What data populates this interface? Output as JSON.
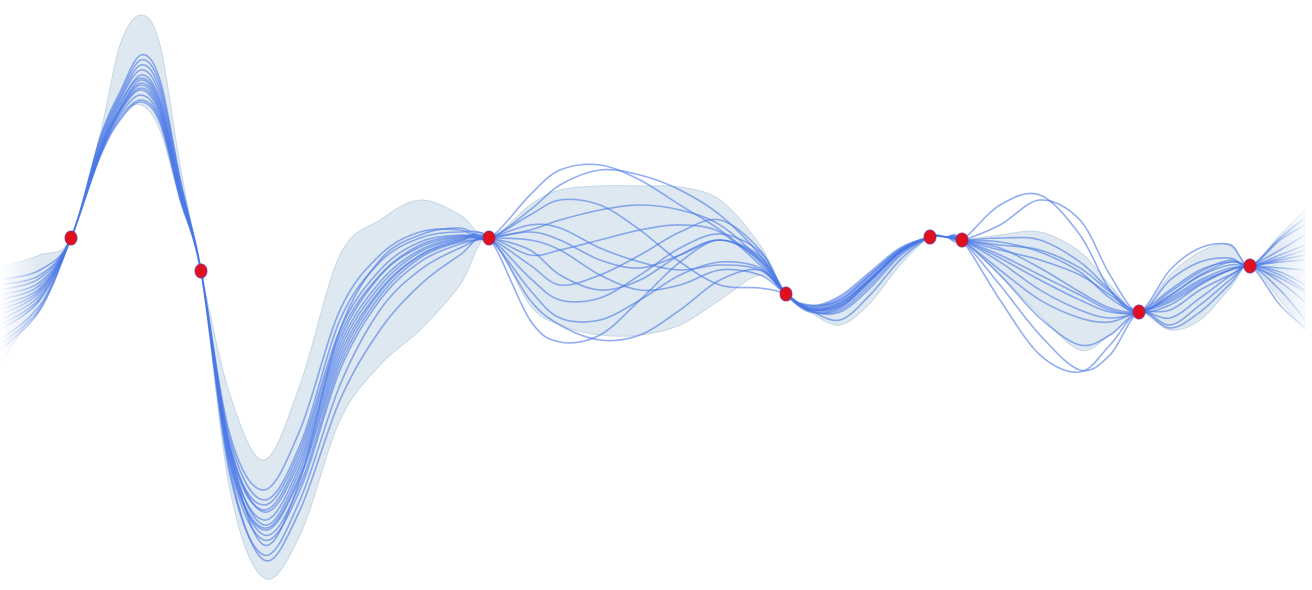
{
  "chart_data": {
    "type": "line",
    "title": "",
    "xlabel": "",
    "ylabel": "",
    "grid": false,
    "legend": "none",
    "xlim": [
      0,
      1312
    ],
    "ylim": [
      -590,
      0
    ],
    "colors": {
      "sample": "#4a78e6",
      "band": "#d8e4ef",
      "observation": "#e0101c"
    },
    "observations": [
      {
        "x": 71,
        "y": -238
      },
      {
        "x": 201,
        "y": -271
      },
      {
        "x": 489,
        "y": -238
      },
      {
        "x": 786,
        "y": -294
      },
      {
        "x": 930,
        "y": -237
      },
      {
        "x": 962,
        "y": -240
      },
      {
        "x": 1139,
        "y": -312
      },
      {
        "x": 1250,
        "y": -266
      }
    ],
    "band": {
      "x": [
        0,
        40,
        71,
        100,
        120,
        141,
        160,
        180,
        201,
        230,
        264,
        300,
        340,
        380,
        420,
        460,
        489,
        530,
        560,
        600,
        640,
        680,
        720,
        760,
        786,
        810,
        840,
        870,
        900,
        930,
        946,
        962,
        1000,
        1040,
        1080,
        1110,
        1139,
        1170,
        1200,
        1230,
        1250,
        1280,
        1305
      ],
      "upper": [
        -268,
        -255,
        -238,
        -135,
        -45,
        -15,
        -45,
        -165,
        -271,
        -395,
        -460,
        -385,
        -255,
        -220,
        -200,
        -215,
        -238,
        -205,
        -190,
        -186,
        -186,
        -187,
        -200,
        -245,
        -294,
        -305,
        -302,
        -280,
        -250,
        -237,
        -237,
        -240,
        -235,
        -232,
        -252,
        -285,
        -312,
        -275,
        -252,
        -244,
        -266,
        -235,
        -210
      ],
      "lower": [
        -365,
        -300,
        -238,
        -155,
        -115,
        -105,
        -130,
        -200,
        -271,
        -490,
        -578,
        -535,
        -420,
        -365,
        -330,
        -285,
        -238,
        -305,
        -325,
        -335,
        -335,
        -325,
        -300,
        -275,
        -294,
        -312,
        -325,
        -303,
        -265,
        -237,
        -237,
        -240,
        -275,
        -315,
        -350,
        -335,
        -312,
        -330,
        -320,
        -288,
        -266,
        -300,
        -330
      ]
    },
    "series": [
      {
        "values": [
          -285,
          -275,
          -238,
          -140,
          -95,
          -60,
          -85,
          -180,
          -271,
          -450,
          -545,
          -480,
          -330,
          -260,
          -235,
          -228,
          -238,
          -210,
          -185,
          -170,
          -175,
          -190,
          -215,
          -255,
          -294,
          -305,
          -300,
          -275,
          -250,
          -237,
          -237,
          -240,
          -225,
          -200,
          -220,
          -275,
          -312,
          -280,
          -262,
          -258,
          -266,
          -238,
          -218
        ]
      },
      {
        "values": [
          -295,
          -282,
          -238,
          -145,
          -100,
          -70,
          -95,
          -185,
          -271,
          -470,
          -560,
          -510,
          -400,
          -330,
          -285,
          -255,
          -238,
          -300,
          -325,
          -340,
          -335,
          -310,
          -280,
          -270,
          -294,
          -310,
          -320,
          -295,
          -260,
          -237,
          -237,
          -240,
          -285,
          -335,
          -370,
          -355,
          -312,
          -325,
          -305,
          -280,
          -266,
          -290,
          -320
        ]
      },
      {
        "values": [
          -300,
          -285,
          -238,
          -148,
          -105,
          -75,
          -100,
          -188,
          -271,
          -475,
          -555,
          -500,
          -385,
          -310,
          -270,
          -248,
          -238,
          -255,
          -250,
          -240,
          -230,
          -225,
          -232,
          -265,
          -294,
          -312,
          -308,
          -282,
          -252,
          -237,
          -237,
          -240,
          -250,
          -260,
          -275,
          -295,
          -312,
          -305,
          -285,
          -270,
          -266,
          -272,
          -285
        ]
      },
      {
        "values": [
          -310,
          -290,
          -238,
          -150,
          -108,
          -80,
          -105,
          -190,
          -271,
          -465,
          -540,
          -490,
          -370,
          -300,
          -262,
          -244,
          -238,
          -230,
          -220,
          -210,
          -205,
          -210,
          -225,
          -260,
          -294,
          -310,
          -302,
          -278,
          -252,
          -237,
          -237,
          -240,
          -245,
          -250,
          -268,
          -292,
          -312,
          -295,
          -275,
          -262,
          -266,
          -260,
          -255
        ]
      },
      {
        "values": [
          -320,
          -295,
          -238,
          -152,
          -110,
          -85,
          -110,
          -192,
          -271,
          -460,
          -528,
          -475,
          -355,
          -290,
          -255,
          -240,
          -238,
          -240,
          -250,
          -275,
          -290,
          -285,
          -270,
          -275,
          -294,
          -309,
          -306,
          -280,
          -252,
          -237,
          -237,
          -240,
          -262,
          -290,
          -310,
          -318,
          -312,
          -300,
          -282,
          -270,
          -266,
          -268,
          -270
        ]
      },
      {
        "values": [
          -330,
          -300,
          -238,
          -153,
          -112,
          -90,
          -115,
          -195,
          -271,
          -455,
          -520,
          -465,
          -345,
          -282,
          -250,
          -238,
          -238,
          -250,
          -275,
          -290,
          -280,
          -255,
          -240,
          -258,
          -294,
          -311,
          -310,
          -285,
          -254,
          -237,
          -237,
          -240,
          -270,
          -300,
          -318,
          -322,
          -312,
          -310,
          -290,
          -275,
          -266,
          -275,
          -290
        ]
      },
      {
        "values": [
          -340,
          -305,
          -238,
          -155,
          -115,
          -95,
          -118,
          -196,
          -271,
          -450,
          -510,
          -455,
          -335,
          -275,
          -245,
          -236,
          -238,
          -265,
          -285,
          -275,
          -255,
          -232,
          -220,
          -250,
          -294,
          -308,
          -300,
          -276,
          -250,
          -237,
          -237,
          -240,
          -258,
          -280,
          -300,
          -312,
          -312,
          -298,
          -280,
          -268,
          -266,
          -250,
          -235
        ]
      },
      {
        "values": [
          -350,
          -310,
          -238,
          -156,
          -118,
          -100,
          -120,
          -198,
          -271,
          -448,
          -505,
          -450,
          -330,
          -270,
          -242,
          -235,
          -238,
          -215,
          -200,
          -205,
          -230,
          -262,
          -285,
          -288,
          -294,
          -310,
          -304,
          -279,
          -251,
          -237,
          -237,
          -240,
          -238,
          -240,
          -262,
          -290,
          -312,
          -292,
          -272,
          -260,
          -266,
          -255,
          -245
        ]
      },
      {
        "values": [
          -290,
          -278,
          -238,
          -142,
          -98,
          -65,
          -90,
          -182,
          -271,
          -440,
          -500,
          -445,
          -320,
          -262,
          -238,
          -232,
          -238,
          -290,
          -318,
          -320,
          -300,
          -275,
          -262,
          -268,
          -294,
          -307,
          -298,
          -274,
          -249,
          -237,
          -237,
          -240,
          -275,
          -318,
          -345,
          -335,
          -312,
          -318,
          -298,
          -276,
          -266,
          -282,
          -302
        ]
      },
      {
        "values": [
          -305,
          -288,
          -238,
          -147,
          -103,
          -78,
          -102,
          -187,
          -271,
          -445,
          -512,
          -460,
          -340,
          -276,
          -247,
          -237,
          -238,
          -232,
          -240,
          -260,
          -268,
          -255,
          -240,
          -256,
          -294,
          -309,
          -305,
          -280,
          -252,
          -237,
          -237,
          -240,
          -248,
          -268,
          -292,
          -308,
          -312,
          -302,
          -284,
          -270,
          -266,
          -262,
          -260
        ]
      },
      {
        "values": [
          -315,
          -292,
          -238,
          -151,
          -109,
          -83,
          -107,
          -191,
          -271,
          -452,
          -525,
          -470,
          -350,
          -286,
          -252,
          -239,
          -238,
          -278,
          -300,
          -298,
          -275,
          -248,
          -234,
          -252,
          -294,
          -310,
          -307,
          -281,
          -253,
          -237,
          -237,
          -240,
          -255,
          -275,
          -295,
          -310,
          -312,
          -290,
          -270,
          -262,
          -266,
          -278,
          -292
        ]
      },
      {
        "values": [
          -325,
          -298,
          -238,
          -154,
          -111,
          -88,
          -112,
          -194,
          -271,
          -458,
          -535,
          -485,
          -365,
          -296,
          -258,
          -242,
          -238,
          -225,
          -228,
          -248,
          -262,
          -270,
          -265,
          -270,
          -294,
          -308,
          -303,
          -279,
          -252,
          -237,
          -237,
          -240,
          -242,
          -252,
          -272,
          -298,
          -312,
          -296,
          -276,
          -265,
          -266,
          -258,
          -250
        ]
      },
      {
        "values": [
          -280,
          -270,
          -238,
          -138,
          -92,
          -55,
          -80,
          -178,
          -271,
          -435,
          -490,
          -430,
          -310,
          -255,
          -232,
          -230,
          -238,
          -195,
          -170,
          -165,
          -180,
          -205,
          -230,
          -262,
          -294,
          -306,
          -296,
          -272,
          -248,
          -237,
          -237,
          -240,
          -205,
          -195,
          -235,
          -290,
          -312,
          -270,
          -248,
          -245,
          -266,
          -240,
          -225
        ]
      },
      {
        "values": [
          -345,
          -308,
          -238,
          -157,
          -120,
          -102,
          -123,
          -199,
          -271,
          -462,
          -530,
          -478,
          -360,
          -292,
          -256,
          -241,
          -238,
          -320,
          -342,
          -335,
          -300,
          -262,
          -240,
          -260,
          -294,
          -311,
          -312,
          -288,
          -256,
          -237,
          -237,
          -240,
          -300,
          -355,
          -372,
          -345,
          -312,
          -328,
          -312,
          -284,
          -266,
          -305,
          -328
        ]
      }
    ]
  }
}
